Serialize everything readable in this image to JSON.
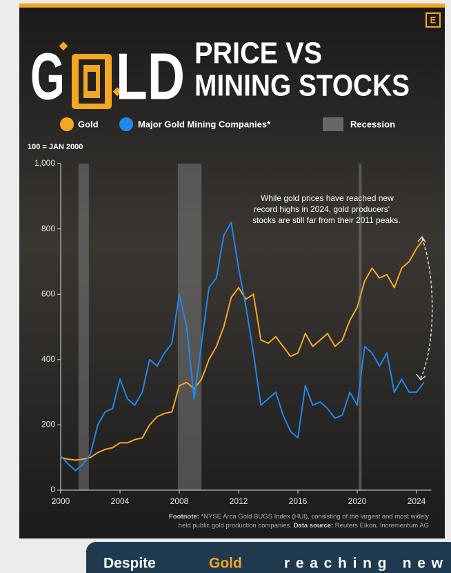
{
  "chart_data": {
    "type": "line",
    "logo": "E",
    "title_parts": [
      "G",
      "LD"
    ],
    "title_right": [
      "PRICE VS",
      "MINING STOCKS"
    ],
    "unit_note": "100 = JAN 2000",
    "recession_label": "Recession",
    "recessions": [
      [
        2001.2,
        2001.9
      ],
      [
        2007.9,
        2009.5
      ],
      [
        2020.1,
        2020.3
      ]
    ],
    "x": [
      2000,
      2000.5,
      2001,
      2001.5,
      2002,
      2002.5,
      2003,
      2003.5,
      2004,
      2004.5,
      2005,
      2005.5,
      2006,
      2006.5,
      2007,
      2007.5,
      2008,
      2008.5,
      2009,
      2009.5,
      2010,
      2010.5,
      2011,
      2011.5,
      2012,
      2012.5,
      2013,
      2013.5,
      2014,
      2014.5,
      2015,
      2015.5,
      2016,
      2016.5,
      2017,
      2017.5,
      2018,
      2018.5,
      2019,
      2019.5,
      2020,
      2020.5,
      2021,
      2021.5,
      2022,
      2022.5,
      2023,
      2023.5,
      2024,
      2024.5
    ],
    "series": [
      {
        "name": "Gold",
        "color": "#f5a623",
        "values": [
          100,
          95,
          92,
          95,
          100,
          115,
          125,
          130,
          145,
          145,
          155,
          160,
          200,
          225,
          235,
          240,
          320,
          330,
          310,
          340,
          400,
          440,
          500,
          590,
          620,
          585,
          600,
          460,
          450,
          470,
          440,
          410,
          420,
          480,
          440,
          460,
          480,
          440,
          460,
          520,
          560,
          640,
          680,
          650,
          660,
          620,
          680,
          700,
          740,
          770
        ]
      },
      {
        "name": "Major Gold Mining Companies*",
        "color": "#1e88f0",
        "values": [
          105,
          80,
          60,
          80,
          110,
          200,
          240,
          250,
          340,
          280,
          260,
          300,
          400,
          380,
          420,
          450,
          600,
          500,
          280,
          450,
          620,
          650,
          780,
          820,
          680,
          560,
          420,
          260,
          280,
          300,
          230,
          180,
          160,
          320,
          260,
          270,
          250,
          220,
          230,
          300,
          260,
          440,
          420,
          380,
          420,
          300,
          340,
          300,
          300,
          330
        ]
      }
    ],
    "xlim": [
      2000,
      2025
    ],
    "xticks": [
      2000,
      2004,
      2008,
      2012,
      2016,
      2020,
      2024
    ],
    "ylim": [
      0,
      1000
    ],
    "yticks": [
      0,
      200,
      400,
      600,
      800,
      {
        "value": 1000,
        "label": "1,000"
      }
    ],
    "annotation": [
      "While gold prices have reached new",
      "record highs in 2024, gold producers'",
      "stocks are still far from their 2011 peaks."
    ],
    "footnote_label": "Footnote:",
    "footnote_text": "*NYSE Arca Gold BUGS Index (HUI), consisting of the largest and most widely",
    "footnote_text2": "held public gold production companies.",
    "source_label": "Data source:",
    "source_text": "Reuters Eikon, Incrementum AG",
    "callout": [
      "Despite",
      "Gold",
      "reaching new"
    ]
  }
}
